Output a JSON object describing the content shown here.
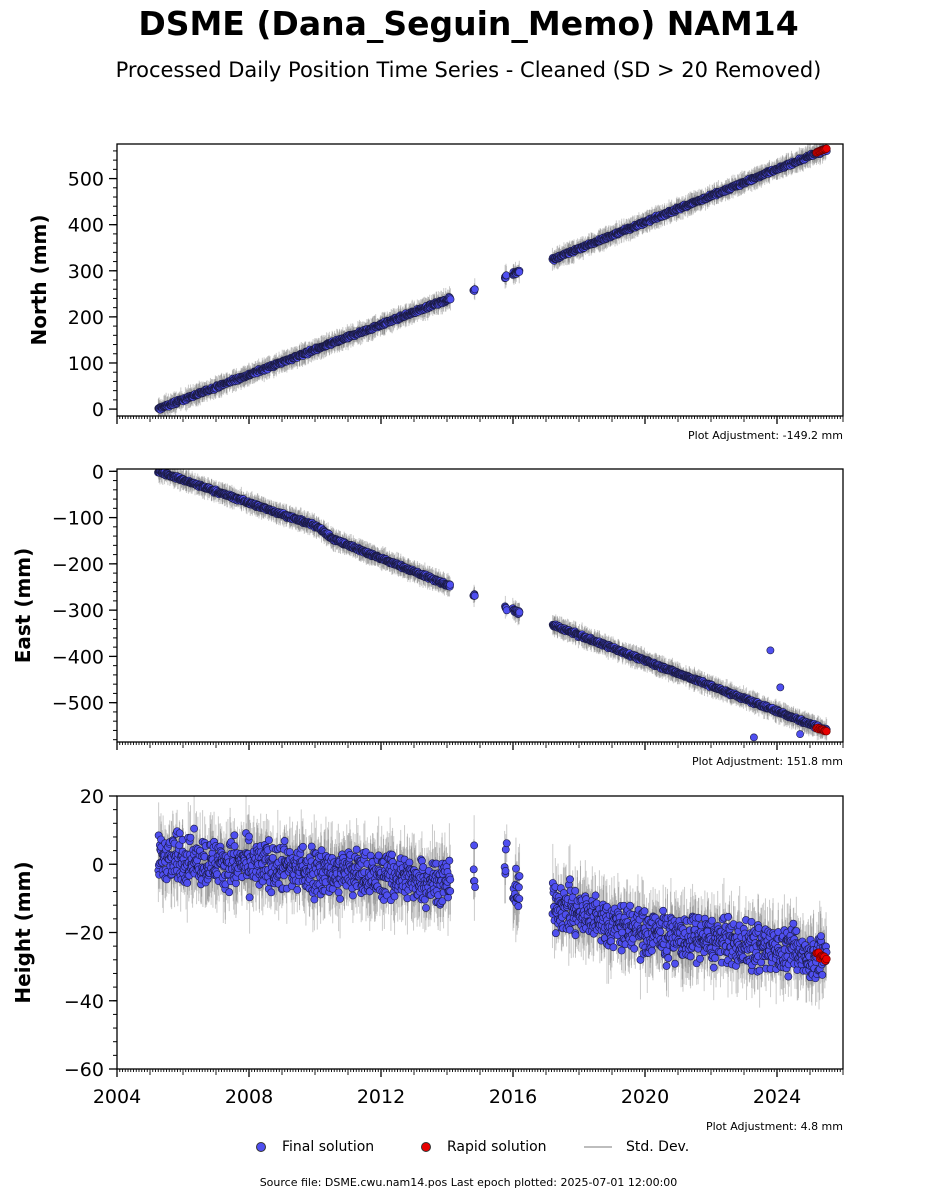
{
  "title": "DSME (Dana_Seguin_Memo) NAM14",
  "subtitle": "Processed Daily Position Time Series - Cleaned (SD > 20 Removed)",
  "footer": "Source file: DSME.cwu.nam14.pos  Last epoch plotted: 2025-07-01 12:00:00",
  "legend": {
    "final": "Final solution",
    "rapid": "Rapid solution",
    "std": "Std. Dev."
  },
  "colors": {
    "final": "#4f4ff0",
    "rapid": "#e80000",
    "std": "#bdbdbd"
  },
  "chart_data": [
    {
      "type": "scatter",
      "ylabel": "North (mm)",
      "adjustment": "Plot Adjustment: -149.2 mm",
      "xlim": [
        2004,
        2026
      ],
      "ylim": [
        -15,
        575
      ],
      "yticks": [
        0,
        100,
        200,
        300,
        400,
        500
      ],
      "xticklabels": false,
      "segments": [
        {
          "x": [
            2005.25,
            2014.1
          ],
          "y": [
            0,
            240
          ]
        },
        {
          "x": [
            2014.8,
            2014.85
          ],
          "y": [
            257,
            260
          ]
        },
        {
          "x": [
            2015.75,
            2015.8
          ],
          "y": [
            285,
            289
          ]
        },
        {
          "x": [
            2016.0,
            2016.2
          ],
          "y": [
            293,
            299
          ]
        },
        {
          "x": [
            2017.2,
            2025.5
          ],
          "y": [
            325,
            563
          ]
        }
      ],
      "rapid": {
        "x": [
          2025.2,
          2025.5
        ],
        "y": [
          557,
          565
        ]
      },
      "noise": 3
    },
    {
      "type": "scatter",
      "ylabel": "East (mm)",
      "adjustment": "Plot Adjustment: 151.8 mm",
      "xlim": [
        2004,
        2026
      ],
      "ylim": [
        -585,
        5
      ],
      "yticks": [
        0,
        -100,
        -200,
        -300,
        -400,
        -500
      ],
      "xticklabels": false,
      "segments": [
        {
          "x": [
            2005.25,
            2010.1
          ],
          "y": [
            0,
            -120
          ]
        },
        {
          "x": [
            2010.1,
            2010.5
          ],
          "y": [
            -120,
            -145
          ]
        },
        {
          "x": [
            2010.5,
            2014.1
          ],
          "y": [
            -145,
            -248
          ]
        },
        {
          "x": [
            2014.8,
            2014.85
          ],
          "y": [
            -267,
            -270
          ]
        },
        {
          "x": [
            2015.75,
            2015.8
          ],
          "y": [
            -293,
            -298
          ]
        },
        {
          "x": [
            2016.0,
            2016.2
          ],
          "y": [
            -300,
            -306
          ]
        },
        {
          "x": [
            2017.2,
            2025.5
          ],
          "y": [
            -332,
            -560
          ]
        }
      ],
      "outliers": [
        {
          "x": 2023.8,
          "y": -387
        },
        {
          "x": 2024.1,
          "y": -467
        },
        {
          "x": 2023.3,
          "y": -575
        },
        {
          "x": 2024.7,
          "y": -568
        }
      ],
      "rapid": {
        "x": [
          2025.2,
          2025.5
        ],
        "y": [
          -555,
          -562
        ]
      },
      "noise": 3
    },
    {
      "type": "scatter",
      "ylabel": "Height (mm)",
      "adjustment": "Plot Adjustment: 4.8 mm",
      "xlim": [
        2004,
        2026
      ],
      "ylim": [
        -60,
        20
      ],
      "yticks": [
        20,
        0,
        -20,
        -40,
        -60
      ],
      "xticks": [
        2004,
        2008,
        2012,
        2016,
        2020,
        2024
      ],
      "xticklabels": true,
      "segments": [
        {
          "x": [
            2005.25,
            2014.1
          ],
          "y": [
            2,
            -5
          ]
        },
        {
          "x": [
            2014.8,
            2014.85
          ],
          "y": [
            -3,
            -3
          ]
        },
        {
          "x": [
            2015.75,
            2015.8
          ],
          "y": [
            3,
            3
          ]
        },
        {
          "x": [
            2016.0,
            2016.2
          ],
          "y": [
            -8,
            -8
          ]
        },
        {
          "x": [
            2017.2,
            2020.0
          ],
          "y": [
            -12,
            -20
          ]
        },
        {
          "x": [
            2020.0,
            2025.5
          ],
          "y": [
            -20,
            -27
          ]
        }
      ],
      "rapid": {
        "x": [
          2025.2,
          2025.5
        ],
        "y": [
          -26,
          -28
        ]
      },
      "noise": 6
    }
  ]
}
